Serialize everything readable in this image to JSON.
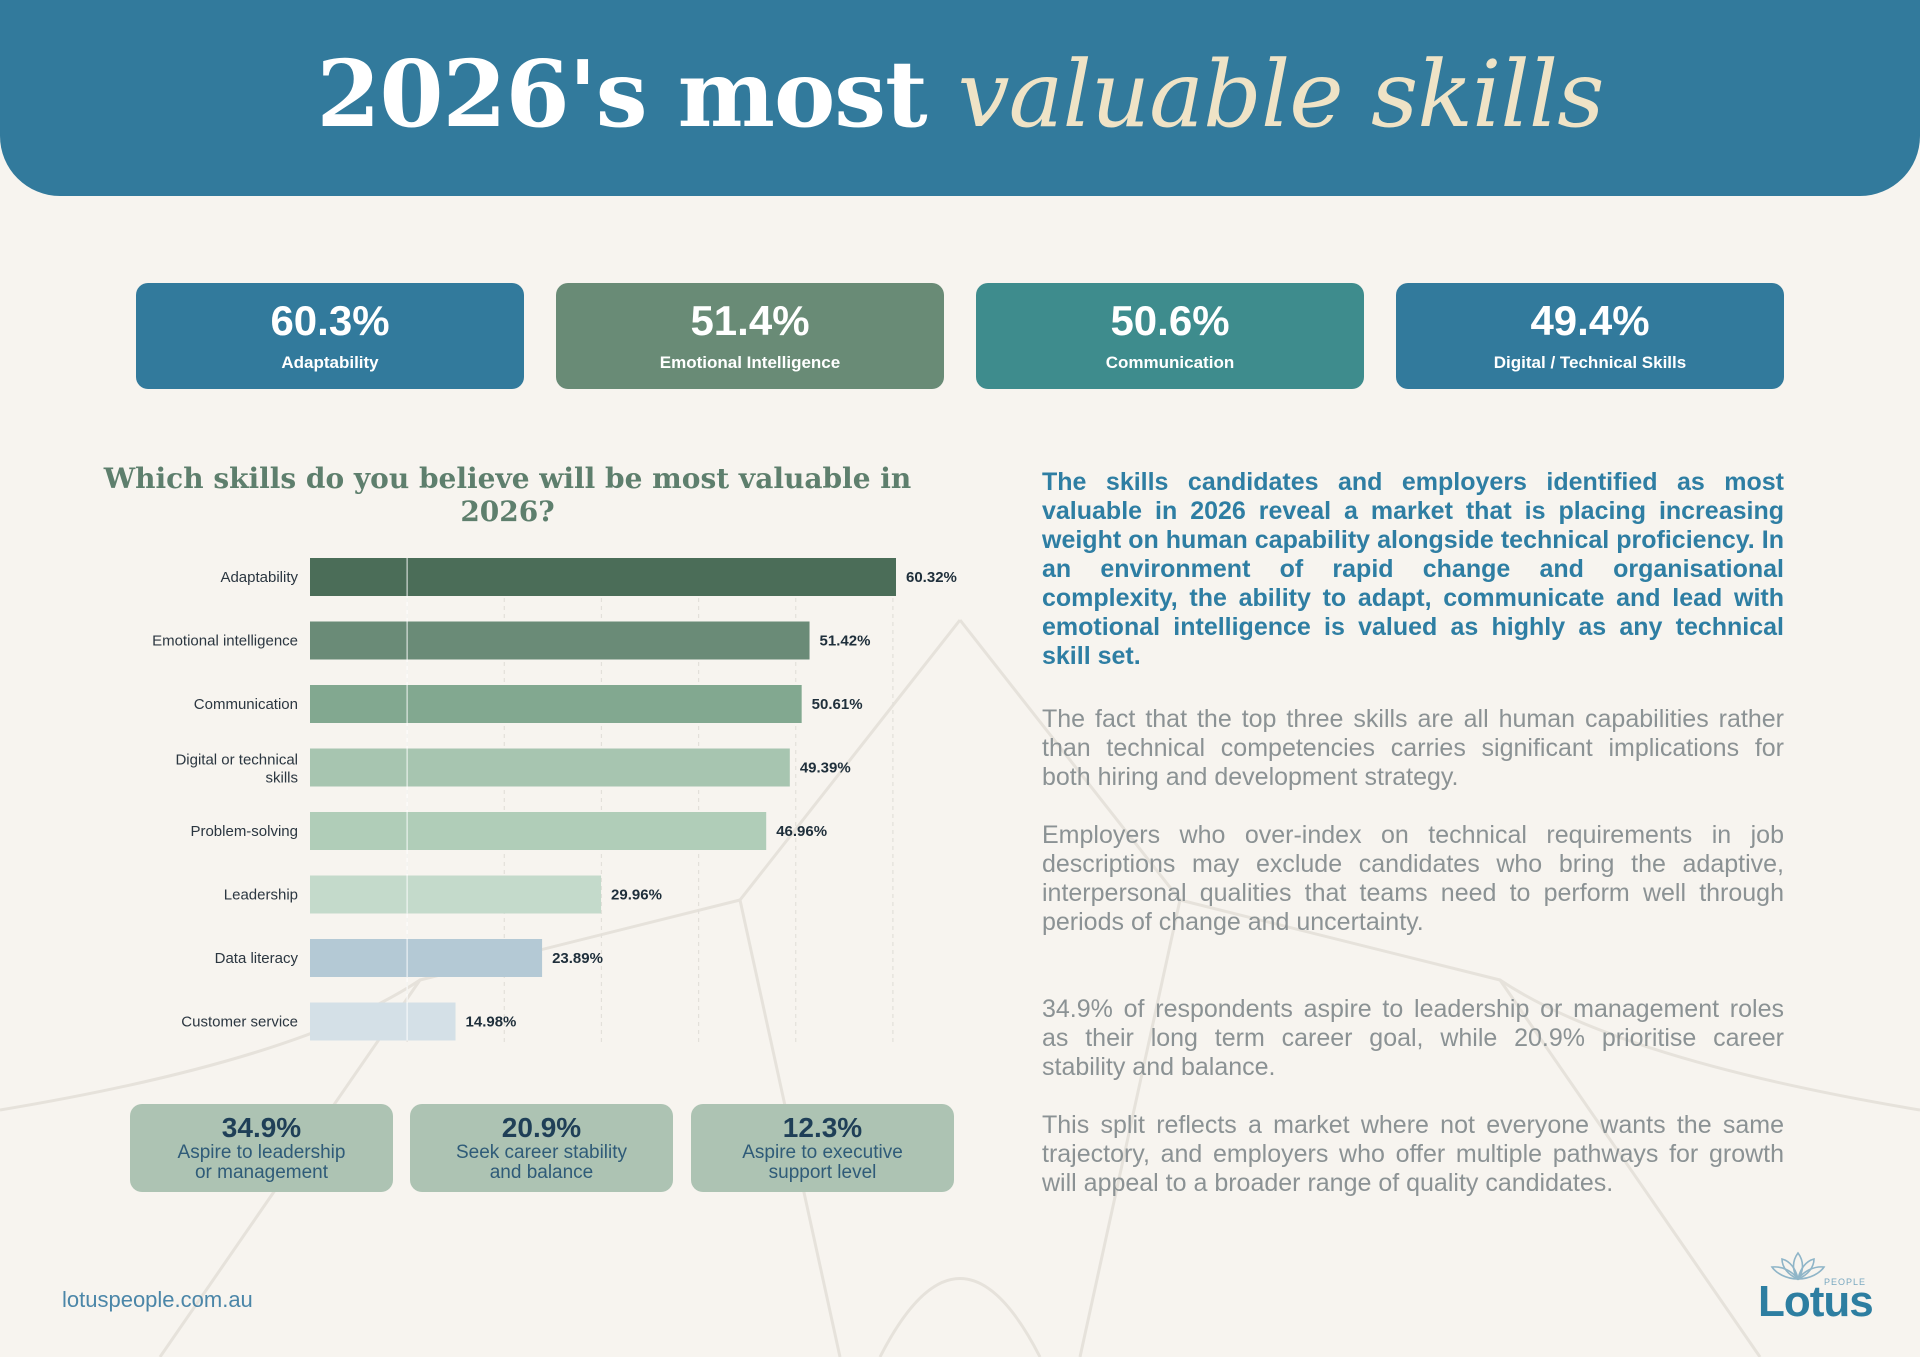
{
  "header": {
    "title_main": "2026's most",
    "title_accent": "valuable skills"
  },
  "stats": [
    {
      "value": "60.3%",
      "label": "Adaptability",
      "color": "#327a9c"
    },
    {
      "value": "51.4%",
      "label": "Emotional Intelligence",
      "color": "#698b76"
    },
    {
      "value": "50.6%",
      "label": "Communication",
      "color": "#3e8c8d"
    },
    {
      "value": "49.4%",
      "label": "Digital / Technical Skills",
      "color": "#327a9c"
    }
  ],
  "chart_data": {
    "type": "bar",
    "orientation": "horizontal",
    "title": "Which skills do you believe will be most valuable in 2026?",
    "categories": [
      "Adaptability",
      "Emotional intelligence",
      "Communication",
      "Digital or technical skills",
      "Problem-solving",
      "Leadership",
      "Data literacy",
      "Customer service"
    ],
    "values": [
      60.32,
      51.42,
      50.61,
      49.39,
      46.96,
      29.96,
      23.89,
      14.98
    ],
    "value_labels": [
      "60.32%",
      "51.42%",
      "50.61%",
      "49.39%",
      "46.96%",
      "29.96%",
      "23.89%",
      "14.98%"
    ],
    "colors": [
      "#4b6d58",
      "#6a8b77",
      "#82a890",
      "#a7c5b0",
      "#b0cdb8",
      "#c4dacb",
      "#b4c9d5",
      "#d4e0e7"
    ],
    "xlim": [
      0,
      60.32
    ],
    "grid": true
  },
  "mini_stats": [
    {
      "value": "34.9%",
      "line1": "Aspire to leadership",
      "line2": "or management"
    },
    {
      "value": "20.9%",
      "line1": "Seek career stability",
      "line2": "and balance"
    },
    {
      "value": "12.3%",
      "line1": "Aspire to executive",
      "line2": "support level"
    }
  ],
  "text": {
    "lead": "The skills candidates and employers identified as most valuable in 2026 reveal a market that is placing increasing weight on human capability alongside technical proficiency. In an environment of rapid change and organisational complexity, the ability to adapt, communicate and lead with emotional intelligence is valued as highly as any technical skill set.",
    "p1": "The fact that the top three skills are all human capabilities rather than technical competencies carries significant implications for both hiring and development strategy.",
    "p2": "Employers who over-index on technical requirements in job descriptions may exclude candidates who bring the adaptive, interpersonal qualities that teams need to perform well through periods of change and uncertainty.",
    "p3": "34.9% of respondents aspire to leadership or management roles as their long term career goal, while 20.9% prioritise career stability and balance.",
    "p4": "This split reflects a market where not everyone wants the same trajectory, and employers who offer multiple pathways for growth will appeal to a broader range of quality candidates."
  },
  "footer": {
    "url": "lotuspeople.com.au",
    "logo_word": "Lotus",
    "logo_small": "PEOPLE",
    "logo_icon": "lotus-flower-icon"
  }
}
